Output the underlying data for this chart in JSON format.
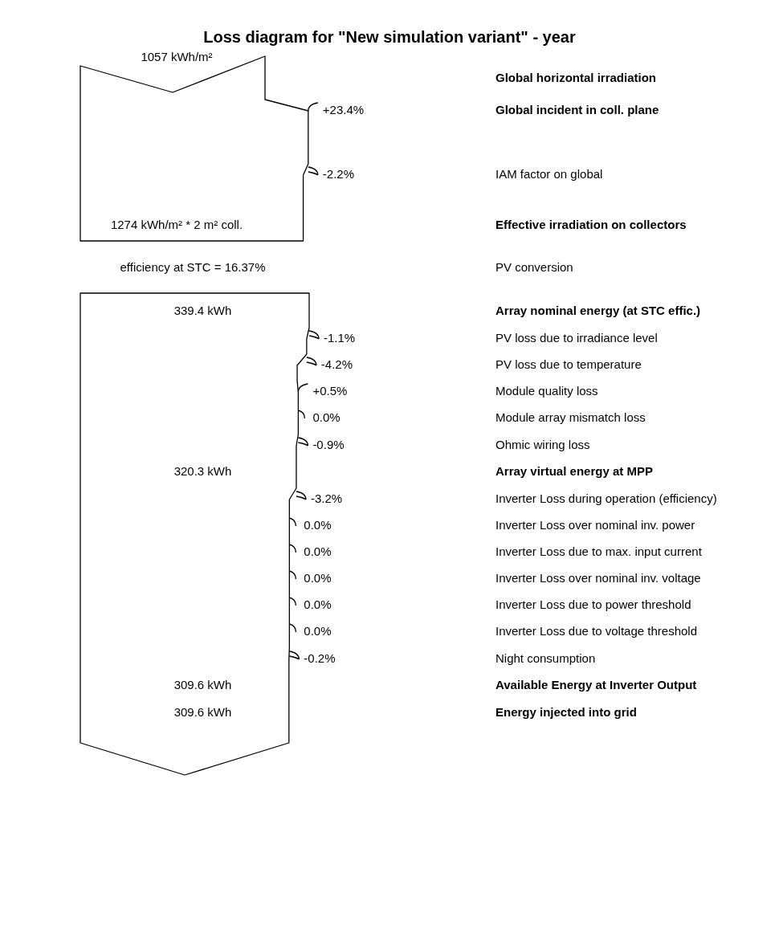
{
  "chart_data": {
    "type": "other",
    "title": "Loss diagram for \"New simulation variant\" - year",
    "categories": [
      "Global horizontal irradiation",
      "Global incident in coll. plane",
      "IAM factor on global",
      "Effective irradiation on collectors",
      "PV conversion",
      "Array nominal energy (at STC effic.)",
      "PV loss due to irradiance level",
      "PV loss due to temperature",
      "Module quality loss",
      "Module array mismatch loss",
      "Ohmic wiring loss",
      "Array virtual energy at MPP",
      "Inverter Loss during operation (efficiency)",
      "Inverter Loss over nominal inv. power",
      "Inverter Loss due to max. input current",
      "Inverter Loss over nominal inv. voltage",
      "Inverter Loss due to power threshold",
      "Inverter Loss due to voltage threshold",
      "Night consumption",
      "Available Energy at Inverter Output",
      "Energy injected into grid"
    ],
    "series": [
      {
        "values": [
          1057,
          null,
          null,
          1274,
          null,
          339.4,
          null,
          null,
          null,
          null,
          null,
          320.3,
          null,
          null,
          null,
          null,
          null,
          null,
          null,
          309.6,
          309.6
        ],
        "value_labels": [
          "1057 kWh/m²",
          null,
          null,
          "1274 kWh/m² * 2 m² coll.",
          null,
          "339.4 kWh",
          null,
          null,
          null,
          null,
          null,
          "320.3 kWh",
          null,
          null,
          null,
          null,
          null,
          null,
          null,
          "309.6 kWh",
          "309.6 kWh"
        ]
      },
      {
        "values": [
          null,
          23.4,
          -2.2,
          null,
          null,
          null,
          -1.1,
          -4.2,
          0.5,
          0.0,
          -0.9,
          null,
          -3.2,
          0.0,
          0.0,
          0.0,
          0.0,
          0.0,
          -0.2,
          null,
          null
        ],
        "value_labels": [
          null,
          "+23.4%",
          "-2.2%",
          null,
          null,
          null,
          "-1.1%",
          "-4.2%",
          "+0.5%",
          "0.0%",
          "-0.9%",
          null,
          "-3.2%",
          "0.0%",
          "0.0%",
          "0.0%",
          "0.0%",
          "0.0%",
          "-0.2%",
          null,
          null
        ]
      },
      {
        "values": [
          null,
          null,
          null,
          null,
          16.37,
          null,
          null,
          null,
          null,
          null,
          null,
          null,
          null,
          null,
          null,
          null,
          null,
          null,
          null,
          null,
          null
        ],
        "value_labels": [
          null,
          null,
          null,
          null,
          "efficiency at STC = 16.37%",
          null,
          null,
          null,
          null,
          null,
          null,
          null,
          null,
          null,
          null,
          null,
          null,
          null,
          null,
          null,
          null
        ]
      }
    ]
  }
}
